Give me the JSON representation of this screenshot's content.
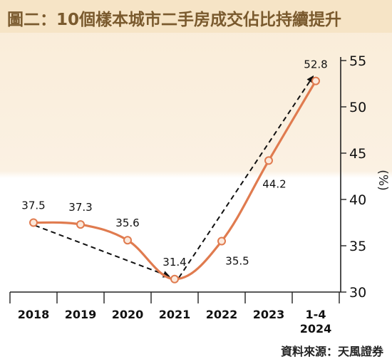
{
  "title": "圖二：10個樣本城市二手房成交佔比持續提升",
  "source": "資料來源：天風證券",
  "chart_data": {
    "type": "line",
    "categories": [
      "2018",
      "2019",
      "2020",
      "2021",
      "2022",
      "2023",
      "1-4 2024"
    ],
    "category_lines": [
      [
        "2018"
      ],
      [
        "2019"
      ],
      [
        "2020"
      ],
      [
        "2021"
      ],
      [
        "2022"
      ],
      [
        "2023"
      ],
      [
        "1-4",
        "2024"
      ]
    ],
    "series": [
      {
        "values": [
          37.5,
          37.3,
          35.6,
          31.4,
          35.5,
          44.2,
          52.8
        ]
      }
    ],
    "data_labels": [
      "37.5",
      "37.3",
      "35.6",
      "31.4",
      "35.5",
      "44.2",
      "52.8"
    ],
    "ylabel": "(%)",
    "ylim": [
      30,
      55
    ],
    "yticks": [
      30,
      35,
      40,
      45,
      50,
      55
    ],
    "y_axis_side": "right",
    "trend_arrows": [
      {
        "from": "2018",
        "to": "2021",
        "style": "dashed"
      },
      {
        "from": "2021",
        "to": "1-4 2024",
        "style": "dashed"
      }
    ],
    "colors": {
      "line": "#e07b4f",
      "marker_fill": "#fbe9dc",
      "arrow": "#111111",
      "axis": "#222222"
    },
    "grid": false
  }
}
